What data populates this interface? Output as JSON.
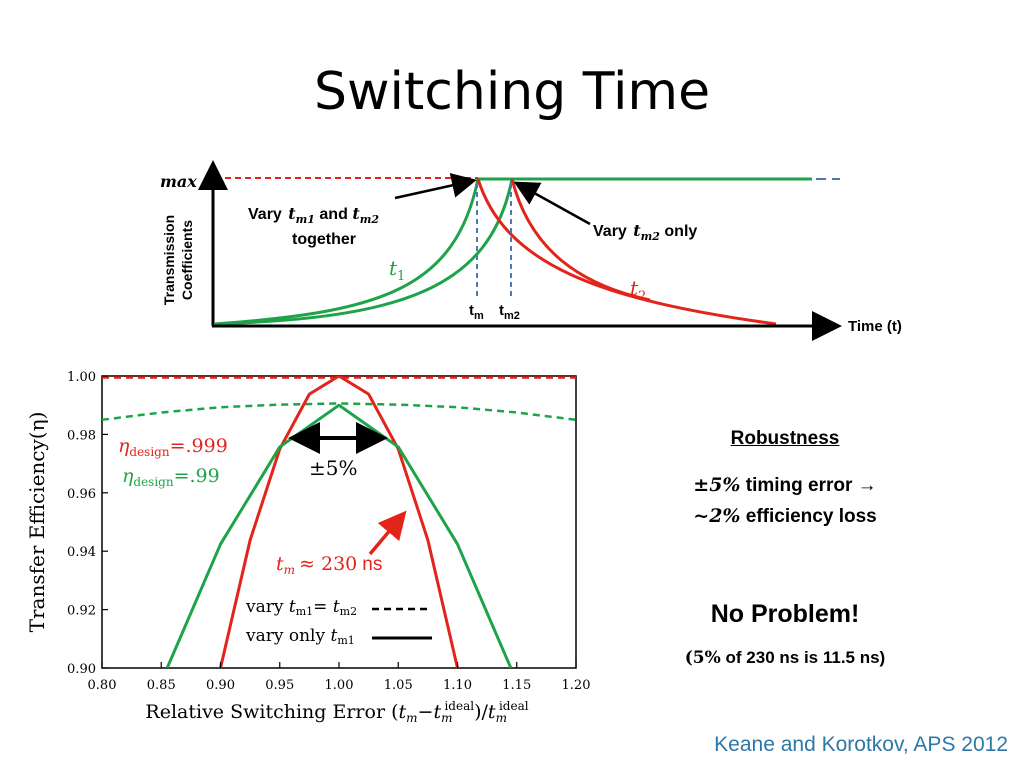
{
  "title": "Switching Time",
  "top_chart": {
    "type": "line",
    "ylabel_line1": "Transmission",
    "ylabel_line2": "Coefficients",
    "xlabel": "Time (t)",
    "y_max_label": "max",
    "annotation_left_1": "Vary",
    "annotation_left_sym1": "t",
    "annotation_left_sub1": "m1",
    "annotation_left_and": "and",
    "annotation_left_sym2": "t",
    "annotation_left_sub2": "m2",
    "annotation_left_2": "together",
    "annotation_right_1": "Vary",
    "annotation_right_sym": "t",
    "annotation_right_sub": "m2",
    "annotation_right_2": "only",
    "t1_label": "t",
    "t1_sub": "1",
    "t2_label": "t",
    "t2_sub": "2",
    "tick_tm": "t",
    "tick_tm_sub": "m",
    "tick_tm2": "t",
    "tick_tm2_sub": "m2",
    "colors": {
      "green": "#1ea34a",
      "red": "#e3241b",
      "blue": "#4a79b4"
    }
  },
  "chart_data": {
    "type": "line",
    "xlabel": "Relative Switching Error (t_m − t_m^ideal)/t_m^ideal",
    "ylabel": "Transfer Efficiency(η)",
    "xlim": [
      0.8,
      1.2
    ],
    "ylim": [
      0.9,
      1.0
    ],
    "x_ticks": [
      "0.80",
      "0.85",
      "0.90",
      "0.95",
      "1.00",
      "1.05",
      "1.10",
      "1.15",
      "1.20"
    ],
    "y_ticks": [
      "0.90",
      "0.92",
      "0.94",
      "0.96",
      "0.98",
      "1.00"
    ],
    "series": [
      {
        "color": "#e3241b",
        "style": "dashed",
        "x": [
          0.8,
          0.9,
          1.0,
          1.1,
          1.2
        ],
        "y": [
          0.9995,
          0.9995,
          0.9995,
          0.9995,
          0.9995
        ]
      },
      {
        "color": "#1ea34a",
        "style": "dashed",
        "x": [
          0.8,
          0.85,
          0.9,
          0.95,
          1.0,
          1.05,
          1.1,
          1.15,
          1.2
        ],
        "y": [
          0.985,
          0.9875,
          0.9893,
          0.9902,
          0.9906,
          0.9902,
          0.9893,
          0.9875,
          0.985
        ]
      },
      {
        "color": "#e3241b",
        "style": "solid",
        "x": [
          0.9,
          0.925,
          0.95,
          0.975,
          1.0,
          1.025,
          1.05,
          1.075,
          1.1
        ],
        "y": [
          0.9,
          0.9438,
          0.975,
          0.9938,
          1.0,
          0.9938,
          0.975,
          0.9438,
          0.9
        ]
      },
      {
        "color": "#1ea34a",
        "style": "solid",
        "x": [
          0.855,
          0.9,
          0.95,
          1.0,
          1.05,
          1.1,
          1.145
        ],
        "y": [
          0.9,
          0.9424,
          0.9757,
          0.99,
          0.9757,
          0.9424,
          0.9
        ]
      }
    ],
    "legend": {
      "placement": "bottom-right",
      "entry1_text": "vary",
      "entry1_sym": "t",
      "entry1_sub": "m1",
      "entry1_eq": "=",
      "entry1_sub2": "m2",
      "entry2_text": "vary only",
      "entry2_sub": "m1"
    },
    "annotations": {
      "eta_red_sym": "η",
      "eta_red_sub": "design",
      "eta_red_val": "=.999",
      "eta_green_sym": "η",
      "eta_green_sub": "design",
      "eta_green_val": "=.99",
      "plus_minus": "±5%",
      "tm_label": "t",
      "tm_sub": "m",
      "tm_approx": "≈ 230",
      "tm_unit": "ns"
    },
    "grid": false
  },
  "robustness": {
    "title": "Robustness",
    "line1_math": "±5%",
    "line1_text": "timing error →",
    "line2_math": "~2%",
    "line2_text": "efficiency loss"
  },
  "no_problem": "No Problem!",
  "note_math": "(5%",
  "note_text": "of 230 ns is 11.5 ns)",
  "citation": "Keane and Korotkov, APS 2012"
}
